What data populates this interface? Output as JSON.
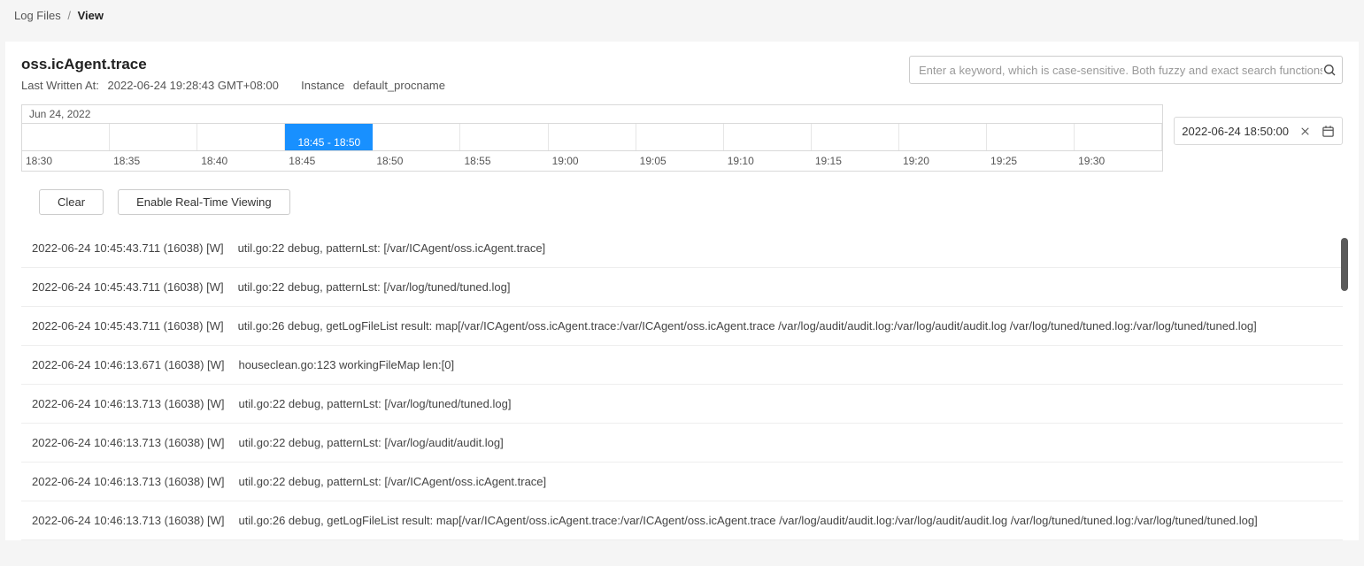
{
  "breadcrumb": {
    "parent": "Log Files",
    "sep": "/",
    "current": "View"
  },
  "title": "oss.icAgent.trace",
  "meta": {
    "last_written_label": "Last Written At:",
    "last_written_value": "2022-06-24 19:28:43 GMT+08:00",
    "instance_label": "Instance",
    "instance_value": "default_procname"
  },
  "search": {
    "placeholder": "Enter a keyword, which is case-sensitive. Both fuzzy and exact search functions are"
  },
  "timeline": {
    "date_label": "Jun 24, 2022",
    "ticks": [
      "18:30",
      "18:35",
      "18:40",
      "18:45",
      "18:50",
      "18:55",
      "19:00",
      "19:05",
      "19:10",
      "19:15",
      "19:20",
      "19:25",
      "19:30"
    ],
    "selection_label": "18:45 - 18:50",
    "selection_start_index": 3,
    "selection_span": 1
  },
  "timestamp_picker": {
    "value": "2022-06-24 18:50:00"
  },
  "buttons": {
    "clear": "Clear",
    "realtime": "Enable Real-Time Viewing"
  },
  "logs": [
    {
      "ts": "2022-06-24 10:45:43.711 (16038) [W]",
      "msg": "util.go:22 debug, patternLst: [/var/ICAgent/oss.icAgent.trace]"
    },
    {
      "ts": "2022-06-24 10:45:43.711 (16038) [W]",
      "msg": "util.go:22 debug, patternLst: [/var/log/tuned/tuned.log]"
    },
    {
      "ts": "2022-06-24 10:45:43.711 (16038) [W]",
      "msg": "util.go:26 debug, getLogFileList result: map[/var/ICAgent/oss.icAgent.trace:/var/ICAgent/oss.icAgent.trace /var/log/audit/audit.log:/var/log/audit/audit.log /var/log/tuned/tuned.log:/var/log/tuned/tuned.log]"
    },
    {
      "ts": "2022-06-24 10:46:13.671 (16038) [W]",
      "msg": "houseclean.go:123 workingFileMap len:[0]"
    },
    {
      "ts": "2022-06-24 10:46:13.713 (16038) [W]",
      "msg": "util.go:22 debug, patternLst: [/var/log/tuned/tuned.log]"
    },
    {
      "ts": "2022-06-24 10:46:13.713 (16038) [W]",
      "msg": "util.go:22 debug, patternLst: [/var/log/audit/audit.log]"
    },
    {
      "ts": "2022-06-24 10:46:13.713 (16038) [W]",
      "msg": "util.go:22 debug, patternLst: [/var/ICAgent/oss.icAgent.trace]"
    },
    {
      "ts": "2022-06-24 10:46:13.713 (16038) [W]",
      "msg": "util.go:26 debug, getLogFileList result: map[/var/ICAgent/oss.icAgent.trace:/var/ICAgent/oss.icAgent.trace /var/log/audit/audit.log:/var/log/audit/audit.log /var/log/tuned/tuned.log:/var/log/tuned/tuned.log]"
    }
  ],
  "colors": {
    "page_bg": "#f5f5f5",
    "panel_bg": "#ffffff",
    "border": "#d9d9d9",
    "selection_bg": "#1890ff",
    "text_primary": "#333333",
    "text_muted": "#555555"
  }
}
